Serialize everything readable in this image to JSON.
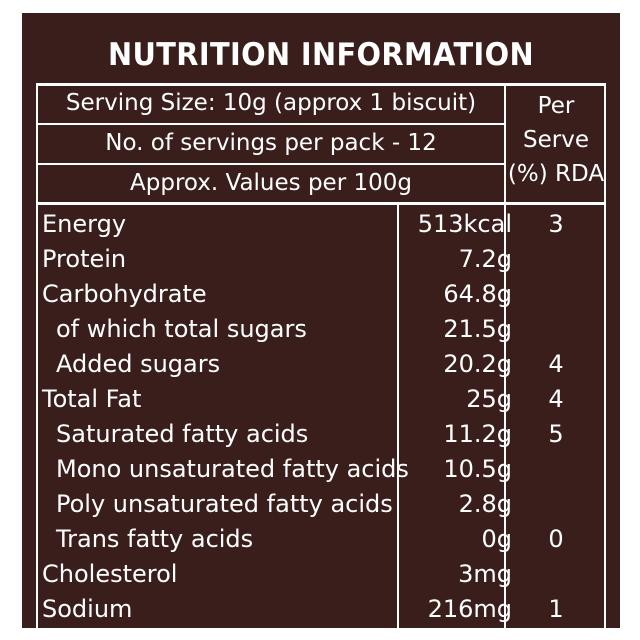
{
  "label": {
    "title": "NUTRITION INFORMATION",
    "serving_size": "Serving Size: 10g (approx 1 biscuit)",
    "servings_per_pack": "No. of servings per pack - 12",
    "values_basis": "Approx. Values per 100g",
    "rda_header": [
      "Per",
      "Serve",
      "(%) RDA"
    ],
    "colors": {
      "background": "#3a1e1c",
      "text": "#ffffff"
    }
  },
  "rows": [
    {
      "nutrient": "Energy",
      "value": "513kcal",
      "rda": "3"
    },
    {
      "nutrient": "Protein",
      "value": "7.2g",
      "rda": ""
    },
    {
      "nutrient": "Carbohydrate",
      "value": "64.8g",
      "rda": ""
    },
    {
      "nutrient": "of which total sugars",
      "value": "21.5g",
      "rda": ""
    },
    {
      "nutrient": "Added sugars",
      "value": "20.2g",
      "rda": "4"
    },
    {
      "nutrient": "Total Fat",
      "value": "25g",
      "rda": "4"
    },
    {
      "nutrient": "Saturated fatty acids",
      "value": "11.2g",
      "rda": "5"
    },
    {
      "nutrient": "Mono unsaturated fatty acids",
      "value": "10.5g",
      "rda": ""
    },
    {
      "nutrient": "Poly unsaturated fatty acids",
      "value": "2.8g",
      "rda": ""
    },
    {
      "nutrient": "Trans fatty acids",
      "value": "0g",
      "rda": "0"
    },
    {
      "nutrient": "Cholesterol",
      "value": "3mg",
      "rda": ""
    },
    {
      "nutrient": "Sodium",
      "value": "216mg",
      "rda": "1"
    }
  ]
}
